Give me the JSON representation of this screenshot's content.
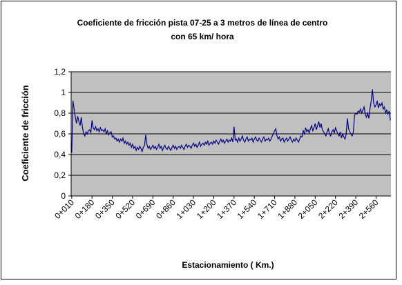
{
  "chart_data": {
    "type": "line",
    "title": [
      "Coeficiente de fricción pista 07-25 a 3 metros de línea de centro",
      "con 65 km/ hora"
    ],
    "x_label": "Estacionamiento ( Km.)",
    "y_label": "Coeficiente de fricción",
    "categories": [
      "0+010",
      null,
      null,
      null,
      null,
      null,
      null,
      null,
      null,
      null,
      null,
      null,
      null,
      null,
      null,
      null,
      null,
      "0+180",
      null,
      null,
      null,
      null,
      null,
      null,
      null,
      null,
      null,
      null,
      null,
      null,
      null,
      null,
      null,
      null,
      "0+350",
      null,
      null,
      null,
      null,
      null,
      null,
      null,
      null,
      null,
      null,
      null,
      null,
      null,
      null,
      null,
      null,
      "0+520",
      null,
      null,
      null,
      null,
      null,
      null,
      null,
      null,
      null,
      null,
      null,
      null,
      null,
      null,
      null,
      null,
      "0+690",
      null,
      null,
      null,
      null,
      null,
      null,
      null,
      null,
      null,
      null,
      null,
      null,
      null,
      null,
      null,
      null,
      "0+860",
      null,
      null,
      null,
      null,
      null,
      null,
      null,
      null,
      null,
      null,
      null,
      null,
      null,
      null,
      null,
      null,
      "1+030",
      null,
      null,
      null,
      null,
      null,
      null,
      null,
      null,
      null,
      null,
      null,
      null,
      null,
      null,
      null,
      null,
      "1+200",
      null,
      null,
      null,
      null,
      null,
      null,
      null,
      null,
      null,
      null,
      null,
      null,
      null,
      null,
      null,
      null,
      "1+370",
      null,
      null,
      null,
      null,
      null,
      null,
      null,
      null,
      null,
      null,
      null,
      null,
      null,
      null,
      null,
      null,
      "1+540",
      null,
      null,
      null,
      null,
      null,
      null,
      null,
      null,
      null,
      null,
      null,
      null,
      null,
      null,
      null,
      null,
      "1+710",
      null,
      null,
      null,
      null,
      null,
      null,
      null,
      null,
      null,
      null,
      null,
      null,
      null,
      null,
      null,
      null,
      "1+880",
      null,
      null,
      null,
      null,
      null,
      null,
      null,
      null,
      null,
      null,
      null,
      null,
      null,
      null,
      null,
      null,
      "2+050",
      null,
      null,
      null,
      null,
      null,
      null,
      null,
      null,
      null,
      null,
      null,
      null,
      null,
      null,
      null,
      null,
      "2+220",
      null,
      null,
      null,
      null,
      null,
      null,
      null,
      null,
      null,
      null,
      null,
      null,
      null,
      null,
      null,
      null,
      "2+390",
      null,
      null,
      null,
      null,
      null,
      null,
      null,
      null,
      null,
      null,
      null,
      null,
      null,
      null,
      null,
      null,
      "2+560",
      null,
      null,
      null,
      null,
      null,
      null,
      null,
      null,
      null,
      null,
      null,
      null
    ],
    "values": [
      0.42,
      0.92,
      0.84,
      0.76,
      0.7,
      0.77,
      0.72,
      0.68,
      0.76,
      0.66,
      0.6,
      0.58,
      0.62,
      0.6,
      0.63,
      0.64,
      0.61,
      0.73,
      0.66,
      0.64,
      0.67,
      0.63,
      0.65,
      0.62,
      0.66,
      0.63,
      0.64,
      0.62,
      0.65,
      0.6,
      0.63,
      0.59,
      0.61,
      0.62,
      0.57,
      0.58,
      0.55,
      0.56,
      0.53,
      0.55,
      0.52,
      0.55,
      0.53,
      0.56,
      0.51,
      0.53,
      0.5,
      0.52,
      0.49,
      0.51,
      0.47,
      0.5,
      0.46,
      0.48,
      0.44,
      0.47,
      0.45,
      0.48,
      0.46,
      0.43,
      0.47,
      0.49,
      0.59,
      0.5,
      0.46,
      0.48,
      0.45,
      0.47,
      0.49,
      0.46,
      0.48,
      0.45,
      0.47,
      0.5,
      0.46,
      0.48,
      0.44,
      0.47,
      0.49,
      0.46,
      0.45,
      0.48,
      0.46,
      0.44,
      0.47,
      0.49,
      0.46,
      0.48,
      0.45,
      0.47,
      0.48,
      0.46,
      0.49,
      0.47,
      0.45,
      0.48,
      0.5,
      0.47,
      0.49,
      0.48,
      0.46,
      0.49,
      0.51,
      0.48,
      0.5,
      0.47,
      0.49,
      0.52,
      0.48,
      0.5,
      0.51,
      0.49,
      0.52,
      0.5,
      0.53,
      0.49,
      0.51,
      0.52,
      0.5,
      0.53,
      0.51,
      0.54,
      0.52,
      0.5,
      0.53,
      0.55,
      0.52,
      0.54,
      0.51,
      0.53,
      0.55,
      0.52,
      0.54,
      0.53,
      0.56,
      0.52,
      0.67,
      0.54,
      0.55,
      0.52,
      0.56,
      0.53,
      0.55,
      0.58,
      0.54,
      0.52,
      0.55,
      0.57,
      0.53,
      0.55,
      0.54,
      0.56,
      0.52,
      0.55,
      0.57,
      0.54,
      0.53,
      0.56,
      0.54,
      0.52,
      0.55,
      0.57,
      0.53,
      0.55,
      0.54,
      0.56,
      0.53,
      0.55,
      0.58,
      0.6,
      0.63,
      0.65,
      0.58,
      0.55,
      0.57,
      0.53,
      0.55,
      0.56,
      0.52,
      0.54,
      0.56,
      0.53,
      0.55,
      0.57,
      0.54,
      0.52,
      0.55,
      0.53,
      0.56,
      0.54,
      0.52,
      0.55,
      0.58,
      0.57,
      0.63,
      0.6,
      0.66,
      0.62,
      0.64,
      0.61,
      0.65,
      0.68,
      0.63,
      0.66,
      0.7,
      0.64,
      0.68,
      0.72,
      0.66,
      0.7,
      0.64,
      0.62,
      0.6,
      0.58,
      0.62,
      0.65,
      0.6,
      0.58,
      0.62,
      0.64,
      0.61,
      0.66,
      0.63,
      0.6,
      0.58,
      0.62,
      0.56,
      0.6,
      0.57,
      0.55,
      0.6,
      0.75,
      0.65,
      0.62,
      0.6,
      0.58,
      0.62,
      0.78,
      0.8,
      0.79,
      0.82,
      0.81,
      0.84,
      0.8,
      0.83,
      0.86,
      0.79,
      0.76,
      0.8,
      0.75,
      0.85,
      0.92,
      1.03,
      0.9,
      0.86,
      0.88,
      0.92,
      0.85,
      0.89,
      0.87,
      0.9,
      0.84,
      0.86,
      0.8,
      0.83,
      0.79,
      0.82,
      0.73
    ],
    "color": "#000080",
    "ylim": [
      0,
      1.2
    ],
    "yticks": [
      0,
      {
        "value": 0.2,
        "label": "0,2"
      },
      {
        "value": 0.4,
        "label": "0,4"
      },
      {
        "value": 0.6,
        "label": "0,6"
      },
      {
        "value": 0.8,
        "label": "0,8"
      },
      1,
      {
        "value": 1.2,
        "label": "1,2"
      }
    ],
    "grid": true
  }
}
